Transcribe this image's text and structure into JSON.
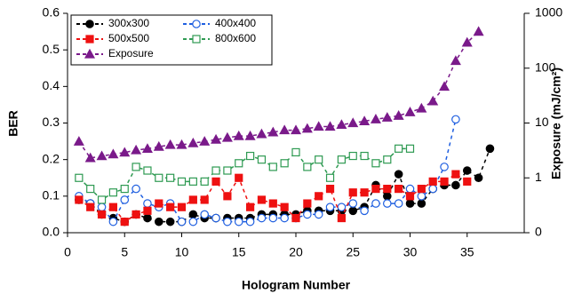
{
  "chart_data": {
    "type": "scatter",
    "x_label": "Hologram Number",
    "y_label": "BER",
    "y2_label": "Exposure (mJ/cm²)",
    "x": [
      1,
      2,
      3,
      4,
      5,
      6,
      7,
      8,
      9,
      10,
      11,
      12,
      13,
      14,
      15,
      16,
      17,
      18,
      19,
      20,
      21,
      22,
      23,
      24,
      25,
      26,
      27,
      28,
      29,
      30,
      31,
      32,
      33,
      34,
      35,
      36,
      37
    ],
    "xlim": [
      0,
      40
    ],
    "xticks": [
      0,
      5,
      10,
      15,
      20,
      25,
      30,
      35
    ],
    "ylim": [
      0,
      0.6
    ],
    "yticks": [
      {
        "value": 0,
        "label": "0.0"
      },
      0.1,
      0.2,
      0.3,
      0.4,
      0.5,
      0.6
    ],
    "y2lim": [
      0.1,
      1000
    ],
    "y2_log": true,
    "y2ticks": [
      {
        "value": 0.1,
        "label": "0"
      },
      1,
      10,
      100,
      1000
    ],
    "series": [
      {
        "name": "300x300",
        "color": "#000000",
        "marker": "circle",
        "filled": true,
        "values": [
          0.09,
          0.08,
          0.05,
          0.04,
          0.03,
          0.05,
          0.04,
          0.03,
          0.03,
          0.03,
          0.05,
          0.04,
          0.04,
          0.04,
          0.04,
          0.04,
          0.05,
          0.05,
          0.05,
          0.05,
          0.06,
          0.06,
          0.06,
          0.06,
          0.06,
          0.07,
          0.13,
          0.1,
          0.16,
          0.08,
          0.08,
          0.12,
          0.13,
          0.13,
          0.17,
          0.15,
          0.23
        ]
      },
      {
        "name": "400x400",
        "color": "#1f5fe0",
        "marker": "circle",
        "filled": false,
        "values": [
          0.1,
          0.08,
          0.07,
          0.03,
          0.09,
          0.12,
          0.08,
          0.07,
          0.08,
          0.03,
          0.03,
          0.05,
          0.04,
          0.03,
          0.03,
          0.03,
          0.04,
          0.04,
          0.04,
          0.04,
          0.05,
          0.05,
          0.07,
          0.07,
          0.08,
          0.06,
          0.08,
          0.08,
          0.08,
          0.12,
          0.1,
          0.12,
          0.18,
          0.31,
          null,
          null,
          null
        ]
      },
      {
        "name": "500x500",
        "color": "#ee1111",
        "marker": "square",
        "filled": true,
        "values": [
          0.09,
          0.07,
          0.05,
          0.07,
          0.03,
          0.05,
          0.06,
          0.08,
          0.07,
          0.07,
          0.09,
          0.09,
          0.14,
          0.1,
          0.15,
          0.07,
          0.09,
          0.08,
          0.07,
          0.04,
          0.08,
          0.1,
          0.12,
          0.04,
          0.11,
          0.11,
          0.12,
          0.12,
          0.12,
          0.1,
          0.12,
          0.14,
          0.14,
          0.16,
          0.14,
          null,
          null
        ]
      },
      {
        "name": "800x600",
        "color": "#2e9a52",
        "marker": "square",
        "filled": false,
        "values": [
          0.15,
          0.12,
          0.09,
          0.11,
          0.12,
          0.18,
          0.17,
          0.15,
          0.15,
          0.14,
          0.14,
          0.14,
          0.17,
          0.17,
          0.19,
          0.21,
          0.2,
          0.18,
          0.19,
          0.22,
          0.18,
          0.2,
          0.15,
          0.2,
          0.21,
          0.21,
          0.19,
          0.2,
          0.23,
          0.23,
          null,
          null,
          null,
          null,
          null,
          null,
          null
        ]
      },
      {
        "name": "Exposure",
        "color": "#7a1a8a",
        "marker": "triangle",
        "filled": true,
        "axis": "y2",
        "values": [
          4.6,
          2.3,
          2.5,
          2.7,
          2.9,
          3.2,
          3.4,
          3.7,
          4.0,
          4.0,
          4.3,
          4.6,
          5.0,
          5.4,
          5.8,
          5.8,
          6.3,
          6.8,
          7.4,
          7.4,
          7.9,
          8.6,
          8.6,
          9.3,
          10,
          10.8,
          11.7,
          12.6,
          13.6,
          15.8,
          18.5,
          25,
          46,
          136,
          293,
          464,
          null
        ]
      }
    ]
  }
}
